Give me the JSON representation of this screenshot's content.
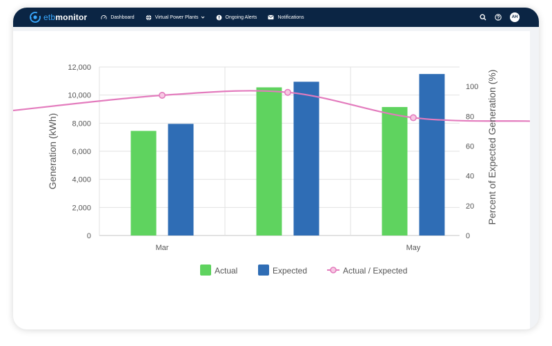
{
  "header": {
    "logo_prefix": "etb",
    "logo_suffix": "monitor",
    "nav": {
      "dashboard": "Dashboard",
      "vpp": "Virtual Power Plants",
      "alerts": "Ongoing Alerts",
      "notifications": "Notifications"
    },
    "icons": [
      "search-icon",
      "help-icon"
    ],
    "avatar": "AH"
  },
  "colors": {
    "navbar": "#0b2544",
    "actual": "#5fd35f",
    "expected": "#2f6db5",
    "ratio": "#e37bbd"
  },
  "chart_data": {
    "type": "bar",
    "categories": [
      "Mar",
      "",
      "May"
    ],
    "series": [
      {
        "name": "Actual",
        "values": [
          7450,
          10550,
          9150
        ],
        "color": "#5fd35f"
      },
      {
        "name": "Expected",
        "values": [
          7950,
          10950,
          11500
        ],
        "color": "#2f6db5"
      }
    ],
    "line_series": {
      "name": "Actual / Expected",
      "values": [
        94,
        96,
        79
      ],
      "color": "#e37bbd"
    },
    "ylabel": "Generation (kWh)",
    "y2label": "Percent of Expected Generation (%)",
    "ylim": [
      0,
      12000
    ],
    "yticks": [
      "12,000",
      "10,000",
      "8,000",
      "6,000",
      "4,000",
      "2,000",
      "0"
    ],
    "y2lim": [
      0,
      113
    ],
    "y2ticks": [
      "100",
      "80",
      "60",
      "40",
      "20",
      "0"
    ],
    "legend_position": "bottom",
    "grid": true
  }
}
